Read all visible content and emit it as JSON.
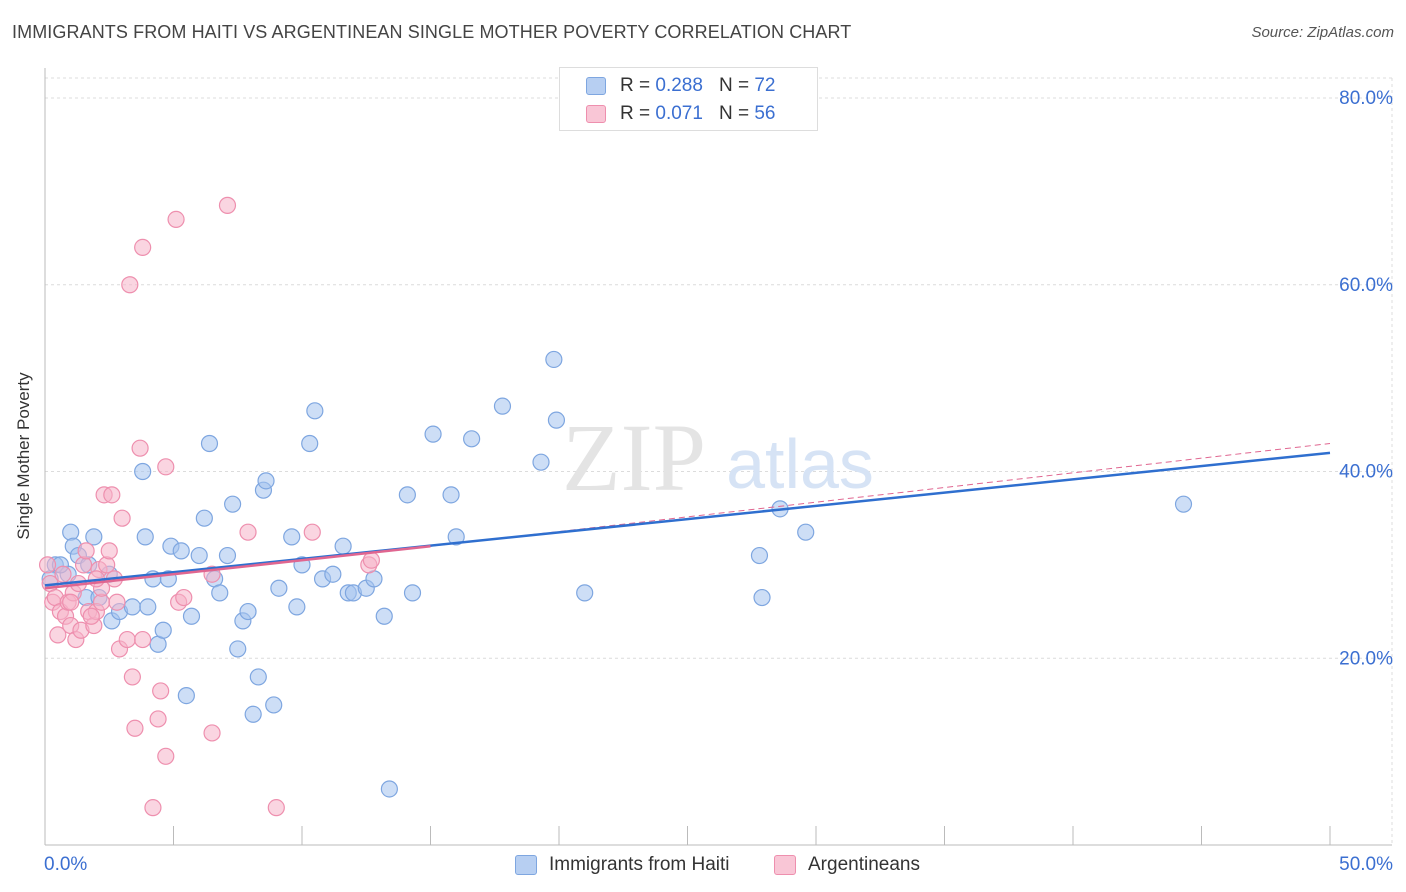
{
  "header": {
    "title": "IMMIGRANTS FROM HAITI VS ARGENTINEAN SINGLE MOTHER POVERTY CORRELATION CHART",
    "source": "Source: ZipAtlas.com"
  },
  "watermark": {
    "zip": "ZIP",
    "atlas": "atlas"
  },
  "legend": {
    "r_label": "R =",
    "n_label": "N =",
    "items": [
      {
        "r_value": "0.288",
        "n_value": "72"
      },
      {
        "r_value": "0.071",
        "n_value": "56"
      }
    ]
  },
  "chart_data": {
    "type": "scatter",
    "title": "IMMIGRANTS FROM HAITI VS ARGENTINEAN SINGLE MOTHER POVERTY CORRELATION CHART",
    "xlabel": "",
    "ylabel": "Single Mother Poverty",
    "xlim": [
      0,
      50
    ],
    "ylim": [
      0,
      83
    ],
    "x_tick_labels": [
      "0.0%",
      "50.0%"
    ],
    "y_ticks": [
      20,
      40,
      60,
      80
    ],
    "y_tick_labels": [
      "20.0%",
      "40.0%",
      "60.0%",
      "80.0%"
    ],
    "grid": true,
    "legend_position": "top-center",
    "series": [
      {
        "name": "Immigrants from Haiti",
        "color": "#a4c2ee",
        "edge_color": "#7ea6e0",
        "line_color": "#2f6fcf",
        "trend": {
          "x": [
            0,
            50
          ],
          "y": [
            27.8,
            42.0
          ]
        },
        "points": [
          [
            0.4,
            30.0
          ],
          [
            0.9,
            29.0
          ],
          [
            1.0,
            33.5
          ],
          [
            1.1,
            32.0
          ],
          [
            1.3,
            31.0
          ],
          [
            1.6,
            26.5
          ],
          [
            1.7,
            30.0
          ],
          [
            1.9,
            33.0
          ],
          [
            2.1,
            26.5
          ],
          [
            2.5,
            29.0
          ],
          [
            2.6,
            24.0
          ],
          [
            2.9,
            25.0
          ],
          [
            3.4,
            25.5
          ],
          [
            3.8,
            40.0
          ],
          [
            3.9,
            33.0
          ],
          [
            4.0,
            25.5
          ],
          [
            4.2,
            28.5
          ],
          [
            4.4,
            21.5
          ],
          [
            4.6,
            23.0
          ],
          [
            4.8,
            28.5
          ],
          [
            4.9,
            32.0
          ],
          [
            5.3,
            31.5
          ],
          [
            5.5,
            16.0
          ],
          [
            5.7,
            24.5
          ],
          [
            6.0,
            31.0
          ],
          [
            6.2,
            35.0
          ],
          [
            6.4,
            43.0
          ],
          [
            6.6,
            28.5
          ],
          [
            6.8,
            27.0
          ],
          [
            7.1,
            31.0
          ],
          [
            7.3,
            36.5
          ],
          [
            7.5,
            21.0
          ],
          [
            7.7,
            24.0
          ],
          [
            7.9,
            25.0
          ],
          [
            8.1,
            14.0
          ],
          [
            8.3,
            18.0
          ],
          [
            8.5,
            38.0
          ],
          [
            8.6,
            39.0
          ],
          [
            8.9,
            15.0
          ],
          [
            9.1,
            27.5
          ],
          [
            9.6,
            33.0
          ],
          [
            9.8,
            25.5
          ],
          [
            10.0,
            30.0
          ],
          [
            10.3,
            43.0
          ],
          [
            10.5,
            46.5
          ],
          [
            10.8,
            28.5
          ],
          [
            11.2,
            29.0
          ],
          [
            11.6,
            32.0
          ],
          [
            11.8,
            27.0
          ],
          [
            12.0,
            27.0
          ],
          [
            12.5,
            27.5
          ],
          [
            12.8,
            28.5
          ],
          [
            13.2,
            24.5
          ],
          [
            13.4,
            6.0
          ],
          [
            14.1,
            37.5
          ],
          [
            14.3,
            27.0
          ],
          [
            15.1,
            44.0
          ],
          [
            15.8,
            37.5
          ],
          [
            16.0,
            33.0
          ],
          [
            16.6,
            43.5
          ],
          [
            17.8,
            47.0
          ],
          [
            19.3,
            41.0
          ],
          [
            19.8,
            52.0
          ],
          [
            19.9,
            45.5
          ],
          [
            21.0,
            27.0
          ],
          [
            27.8,
            31.0
          ],
          [
            27.9,
            26.5
          ],
          [
            28.6,
            36.0
          ],
          [
            29.6,
            33.5
          ],
          [
            44.3,
            36.5
          ],
          [
            0.2,
            28.5
          ],
          [
            0.6,
            30.0
          ]
        ]
      },
      {
        "name": "Argentineans",
        "color": "#f6b3c8",
        "edge_color": "#ee8fae",
        "line_color": "#e06690",
        "trend": {
          "x": [
            0,
            15
          ],
          "y": [
            27.5,
            32.0
          ]
        },
        "trend_extension": {
          "x": [
            15,
            50
          ],
          "y": [
            32.0,
            43.0
          ]
        },
        "points": [
          [
            0.2,
            28.0
          ],
          [
            0.3,
            26.0
          ],
          [
            0.4,
            26.5
          ],
          [
            0.5,
            22.5
          ],
          [
            0.6,
            25.0
          ],
          [
            0.8,
            24.5
          ],
          [
            0.9,
            26.0
          ],
          [
            1.0,
            23.5
          ],
          [
            1.1,
            27.0
          ],
          [
            1.2,
            22.0
          ],
          [
            1.3,
            28.0
          ],
          [
            1.4,
            23.0
          ],
          [
            1.5,
            30.0
          ],
          [
            1.6,
            31.5
          ],
          [
            1.7,
            25.0
          ],
          [
            1.9,
            23.5
          ],
          [
            2.0,
            25.0
          ],
          [
            2.1,
            29.5
          ],
          [
            2.2,
            26.0
          ],
          [
            2.3,
            37.5
          ],
          [
            2.4,
            30.0
          ],
          [
            2.5,
            31.5
          ],
          [
            2.6,
            37.5
          ],
          [
            2.7,
            28.5
          ],
          [
            2.8,
            26.0
          ],
          [
            2.9,
            21.0
          ],
          [
            3.0,
            35.0
          ],
          [
            3.2,
            22.0
          ],
          [
            3.4,
            18.0
          ],
          [
            3.5,
            12.5
          ],
          [
            3.7,
            42.5
          ],
          [
            3.8,
            64.0
          ],
          [
            3.8,
            22.0
          ],
          [
            3.3,
            60.0
          ],
          [
            4.2,
            4.0
          ],
          [
            4.4,
            13.5
          ],
          [
            4.5,
            16.5
          ],
          [
            4.7,
            40.5
          ],
          [
            4.7,
            9.5
          ],
          [
            5.1,
            67.0
          ],
          [
            5.2,
            26.0
          ],
          [
            5.4,
            26.5
          ],
          [
            6.5,
            29.0
          ],
          [
            6.5,
            12.0
          ],
          [
            7.1,
            68.5
          ],
          [
            7.9,
            33.5
          ],
          [
            9.0,
            4.0
          ],
          [
            10.4,
            33.5
          ],
          [
            12.6,
            30.0
          ],
          [
            12.7,
            30.5
          ],
          [
            1.8,
            24.5
          ],
          [
            2.2,
            27.5
          ],
          [
            0.7,
            29.0
          ],
          [
            1.0,
            26.0
          ],
          [
            2.0,
            28.5
          ],
          [
            0.1,
            30.0
          ]
        ]
      }
    ]
  }
}
